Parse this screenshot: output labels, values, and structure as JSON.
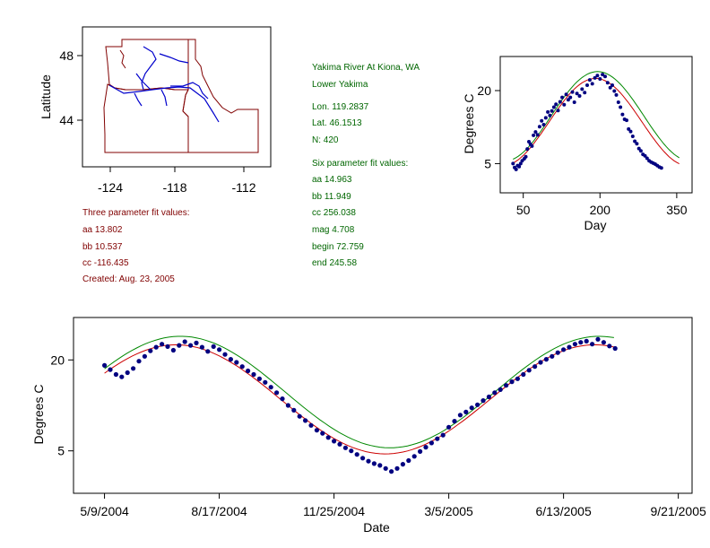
{
  "map": {
    "ylabel": "Latitude",
    "y_ticks": [
      "48",
      "44"
    ],
    "x_ticks": [
      "-124",
      "-118",
      "-112"
    ],
    "state_color": "#800000",
    "river_color": "#0000cc"
  },
  "info_left": {
    "color": "#800000",
    "lines": [
      "Three parameter fit values:",
      "aa 13.802",
      "bb 10.537",
      "cc -116.435",
      "Created:   Aug. 23, 2005"
    ]
  },
  "info_center": {
    "color": "#006600",
    "block1": [
      "Yakima River At Kiona, WA",
      "Lower Yakima"
    ],
    "block2": [
      "Lon. 119.2837",
      "Lat. 46.1513",
      "N: 420"
    ],
    "block3": [
      "Six parameter fit values:",
      "aa 14.963",
      "bb 11.949",
      "cc 256.038",
      "mag 4.708",
      "begin 72.759",
      "end 245.58"
    ]
  },
  "chart_data": [
    {
      "type": "scatter",
      "xlabel": "Day",
      "ylabel": "Degrees C",
      "x_ticks": [
        50,
        200,
        350
      ],
      "y_ticks": [
        5,
        20
      ],
      "xlim": [
        5,
        380
      ],
      "ylim": [
        -1,
        27
      ],
      "grid": false,
      "colors": {
        "points": "#000080",
        "fit3": "#cc0000",
        "fit6": "#008800"
      },
      "series": [
        {
          "values": [
            [
              30,
              5.0
            ],
            [
              33,
              4.2
            ],
            [
              36,
              3.8
            ],
            [
              39,
              4.6
            ],
            [
              42,
              4.4
            ],
            [
              45,
              5.0
            ],
            [
              48,
              5.6
            ],
            [
              52,
              6.0
            ],
            [
              55,
              6.4
            ],
            [
              58,
              8.0
            ],
            [
              61,
              9.5
            ],
            [
              64,
              9.0
            ],
            [
              67,
              8.6
            ],
            [
              70,
              10.8
            ],
            [
              74,
              11.5
            ],
            [
              78,
              10.9
            ],
            [
              82,
              12.6
            ],
            [
              86,
              13.8
            ],
            [
              90,
              13.0
            ],
            [
              94,
              14.4
            ],
            [
              98,
              15.6
            ],
            [
              102,
              14.9
            ],
            [
              106,
              15.8
            ],
            [
              110,
              16.6
            ],
            [
              114,
              17.2
            ],
            [
              118,
              15.9
            ],
            [
              122,
              17.7
            ],
            [
              126,
              18.6
            ],
            [
              130,
              17.1
            ],
            [
              134,
              19.2
            ],
            [
              138,
              18.1
            ],
            [
              142,
              18.6
            ],
            [
              146,
              19.7
            ],
            [
              150,
              17.6
            ],
            [
              155,
              19.4
            ],
            [
              160,
              18.9
            ],
            [
              165,
              20.3
            ],
            [
              170,
              19.6
            ],
            [
              175,
              21.1
            ],
            [
              180,
              22.2
            ],
            [
              185,
              21.4
            ],
            [
              190,
              22.6
            ],
            [
              195,
              23.1
            ],
            [
              200,
              22.4
            ],
            [
              205,
              23.3
            ],
            [
              210,
              22.9
            ],
            [
              215,
              21.6
            ],
            [
              220,
              20.6
            ],
            [
              224,
              21.1
            ],
            [
              228,
              19.9
            ],
            [
              232,
              19.1
            ],
            [
              236,
              17.6
            ],
            [
              240,
              16.6
            ],
            [
              244,
              15.1
            ],
            [
              248,
              14.1
            ],
            [
              252,
              13.9
            ],
            [
              256,
              12.1
            ],
            [
              260,
              11.6
            ],
            [
              264,
              10.6
            ],
            [
              268,
              9.6
            ],
            [
              272,
              9.1
            ],
            [
              276,
              8.1
            ],
            [
              280,
              7.6
            ],
            [
              284,
              6.9
            ],
            [
              288,
              6.6
            ],
            [
              292,
              6.1
            ],
            [
              296,
              5.6
            ],
            [
              300,
              5.3
            ],
            [
              304,
              5.1
            ],
            [
              308,
              4.9
            ],
            [
              312,
              4.6
            ],
            [
              316,
              4.3
            ],
            [
              320,
              4.1
            ]
          ]
        }
      ]
    },
    {
      "type": "scatter",
      "xlabel": "Date",
      "ylabel": "Degrees C",
      "x_ticks": [
        "5/9/2004",
        "8/17/2004",
        "11/25/2004",
        "3/5/2005",
        "6/13/2005",
        "9/21/2005"
      ],
      "y_ticks": [
        5,
        20
      ],
      "ylim": [
        -2,
        27
      ],
      "grid": false,
      "colors": {
        "points": "#000080",
        "fit3": "#cc0000",
        "fit6": "#008800"
      },
      "series": [
        {
          "values": [
            [
              "2004-05-09",
              19.1
            ],
            [
              "2004-05-14",
              18.4
            ],
            [
              "2004-05-19",
              17.6
            ],
            [
              "2004-05-24",
              17.2
            ],
            [
              "2004-05-29",
              17.9
            ],
            [
              "2004-06-03",
              18.6
            ],
            [
              "2004-06-08",
              19.8
            ],
            [
              "2004-06-13",
              20.6
            ],
            [
              "2004-06-18",
              21.5
            ],
            [
              "2004-06-23",
              22.1
            ],
            [
              "2004-06-28",
              22.6
            ],
            [
              "2004-07-03",
              22.2
            ],
            [
              "2004-07-08",
              21.6
            ],
            [
              "2004-07-13",
              22.4
            ],
            [
              "2004-07-18",
              23.0
            ],
            [
              "2004-07-23",
              22.4
            ],
            [
              "2004-07-28",
              22.8
            ],
            [
              "2004-08-02",
              22.1
            ],
            [
              "2004-08-07",
              21.4
            ],
            [
              "2004-08-12",
              22.2
            ],
            [
              "2004-08-17",
              21.7
            ],
            [
              "2004-08-22",
              20.9
            ],
            [
              "2004-08-27",
              20.1
            ],
            [
              "2004-09-01",
              19.6
            ],
            [
              "2004-09-06",
              18.9
            ],
            [
              "2004-09-11",
              18.2
            ],
            [
              "2004-09-16",
              17.6
            ],
            [
              "2004-09-21",
              16.9
            ],
            [
              "2004-09-26",
              16.3
            ],
            [
              "2004-10-01",
              15.5
            ],
            [
              "2004-10-06",
              14.6
            ],
            [
              "2004-10-11",
              13.6
            ],
            [
              "2004-10-16",
              12.5
            ],
            [
              "2004-10-21",
              11.7
            ],
            [
              "2004-10-26",
              10.7
            ],
            [
              "2004-10-31",
              10.0
            ],
            [
              "2004-11-05",
              9.2
            ],
            [
              "2004-11-10",
              8.4
            ],
            [
              "2004-11-15",
              7.9
            ],
            [
              "2004-11-20",
              7.2
            ],
            [
              "2004-11-25",
              6.6
            ],
            [
              "2004-11-30",
              6.1
            ],
            [
              "2004-12-05",
              5.5
            ],
            [
              "2004-12-10",
              5.0
            ],
            [
              "2004-12-15",
              4.4
            ],
            [
              "2004-12-20",
              3.8
            ],
            [
              "2004-12-25",
              3.3
            ],
            [
              "2004-12-30",
              2.9
            ],
            [
              "2005-01-04",
              2.6
            ],
            [
              "2005-01-09",
              2.1
            ],
            [
              "2005-01-14",
              1.6
            ],
            [
              "2005-01-19",
              2.1
            ],
            [
              "2005-01-24",
              2.8
            ],
            [
              "2005-01-29",
              3.4
            ],
            [
              "2005-02-03",
              4.1
            ],
            [
              "2005-02-08",
              4.9
            ],
            [
              "2005-02-13",
              5.6
            ],
            [
              "2005-02-18",
              6.3
            ],
            [
              "2005-02-23",
              7.0
            ],
            [
              "2005-02-28",
              7.6
            ],
            [
              "2005-03-05",
              8.9
            ],
            [
              "2005-03-10",
              9.9
            ],
            [
              "2005-03-15",
              10.9
            ],
            [
              "2005-03-20",
              11.4
            ],
            [
              "2005-03-25",
              12.1
            ],
            [
              "2005-03-30",
              12.6
            ],
            [
              "2005-04-04",
              13.3
            ],
            [
              "2005-04-09",
              13.9
            ],
            [
              "2005-04-14",
              14.6
            ],
            [
              "2005-04-19",
              15.1
            ],
            [
              "2005-04-24",
              15.8
            ],
            [
              "2005-04-29",
              16.4
            ],
            [
              "2005-05-04",
              16.9
            ],
            [
              "2005-05-09",
              17.6
            ],
            [
              "2005-05-14",
              18.3
            ],
            [
              "2005-05-19",
              18.9
            ],
            [
              "2005-05-24",
              19.6
            ],
            [
              "2005-05-29",
              20.1
            ],
            [
              "2005-06-03",
              20.6
            ],
            [
              "2005-06-08",
              21.2
            ],
            [
              "2005-06-13",
              21.7
            ],
            [
              "2005-06-18",
              22.1
            ],
            [
              "2005-06-23",
              22.6
            ],
            [
              "2005-06-28",
              22.9
            ],
            [
              "2005-07-03",
              23.1
            ],
            [
              "2005-07-08",
              22.6
            ],
            [
              "2005-07-13",
              23.4
            ],
            [
              "2005-07-18",
              22.9
            ],
            [
              "2005-07-23",
              22.3
            ],
            [
              "2005-07-28",
              21.9
            ]
          ]
        }
      ]
    }
  ]
}
